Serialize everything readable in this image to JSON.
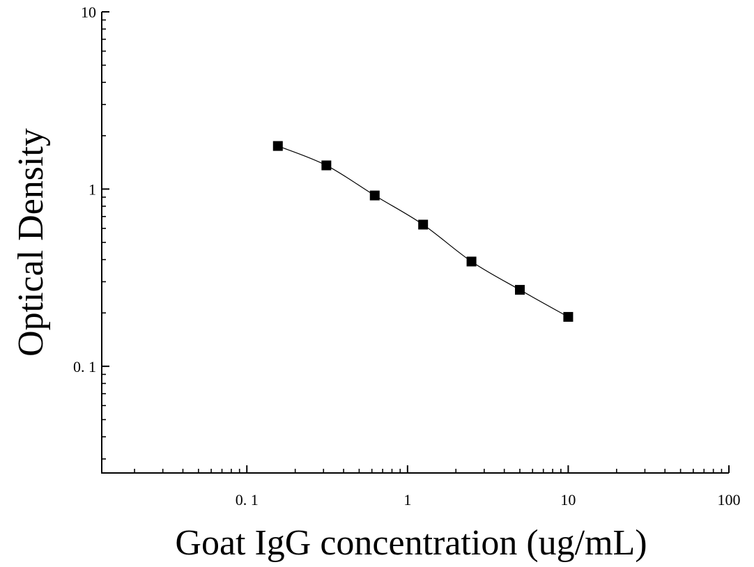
{
  "chart_data": {
    "type": "scatter",
    "title": "",
    "xlabel": "Goat IgG concentration (ug/mL)",
    "ylabel": "Optical Density",
    "x_scale": "log",
    "y_scale": "log",
    "xlim": [
      0.0125,
      100
    ],
    "ylim": [
      0.025,
      10
    ],
    "x_ticks": [
      0.1,
      1,
      10,
      100
    ],
    "x_tick_labels": [
      "0. 1",
      "1",
      "10",
      "100"
    ],
    "y_ticks": [
      0.1,
      1,
      10
    ],
    "y_tick_labels": [
      "0. 1",
      "1",
      "10"
    ],
    "grid": false,
    "legend": "none",
    "series": [
      {
        "marker": "square",
        "color": "#000000",
        "x": [
          0.156,
          0.3125,
          0.625,
          1.25,
          2.5,
          5,
          10
        ],
        "y": [
          1.75,
          1.36,
          0.92,
          0.63,
          0.39,
          0.27,
          0.19
        ]
      }
    ],
    "fit_curve": {
      "color": "#000000",
      "x": [
        0.156,
        0.3125,
        0.625,
        1.25,
        2.5,
        5,
        10
      ],
      "y": [
        1.75,
        1.36,
        0.92,
        0.63,
        0.39,
        0.27,
        0.19
      ]
    }
  }
}
